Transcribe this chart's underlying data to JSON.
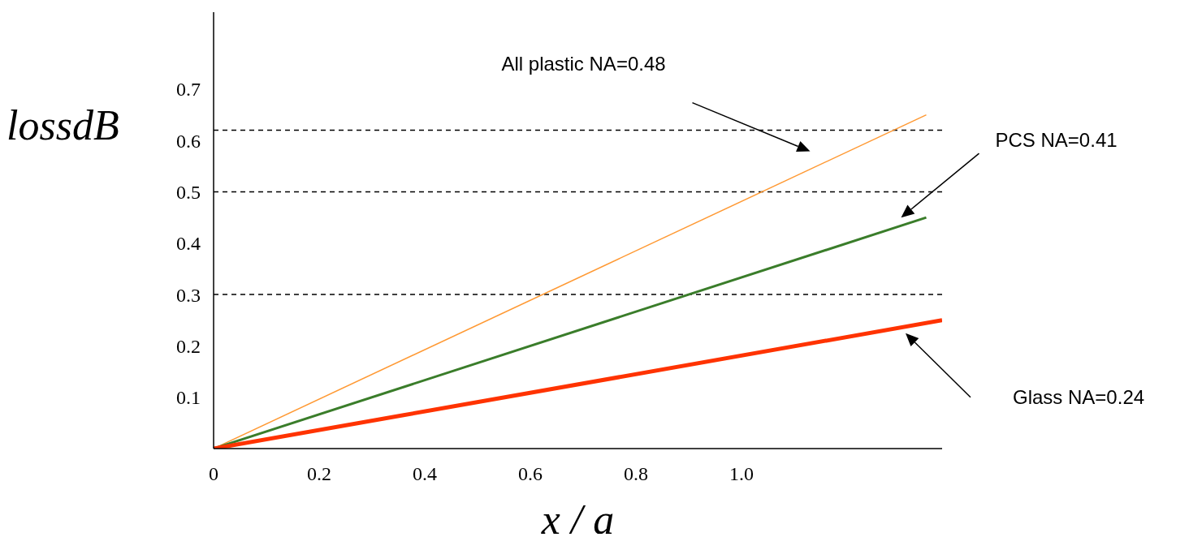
{
  "chart_data": {
    "type": "line",
    "xlabel": "x / a",
    "ylabel": "lossdB",
    "xlim": [
      0,
      1.38
    ],
    "xticks": [
      0,
      0.2,
      0.4,
      0.6,
      0.8,
      {
        "value": 1.0,
        "label": "1.0"
      }
    ],
    "ylim": [
      0,
      0.85
    ],
    "yticks": [
      0.1,
      0.2,
      0.3,
      0.4,
      0.5,
      0.6,
      0.7
    ],
    "series": [
      {
        "color": "#ff9933",
        "x": [
          0,
          1.35
        ],
        "values": [
          0,
          0.65
        ]
      },
      {
        "color": "#3a7d2a",
        "x": [
          0,
          1.35
        ],
        "values": [
          0,
          0.45
        ]
      },
      {
        "color": "#ff3300",
        "x": [
          0,
          1.38
        ],
        "values": [
          0,
          0.25
        ]
      }
    ],
    "annotations": [
      "All plastic NA=0.48",
      "PCS NA=0.41",
      "Glass NA=0.24"
    ],
    "ref_lines": [
      {
        "axis": "y",
        "value": 0.62,
        "color": "#000000",
        "line_style": "dashed"
      },
      {
        "axis": "y",
        "value": 0.5,
        "color": "#000000",
        "line_style": "dashed"
      },
      {
        "axis": "y",
        "value": 0.3,
        "color": "#000000",
        "line_style": "dashed"
      }
    ],
    "grid": false,
    "legend": false,
    "marker": "none"
  }
}
